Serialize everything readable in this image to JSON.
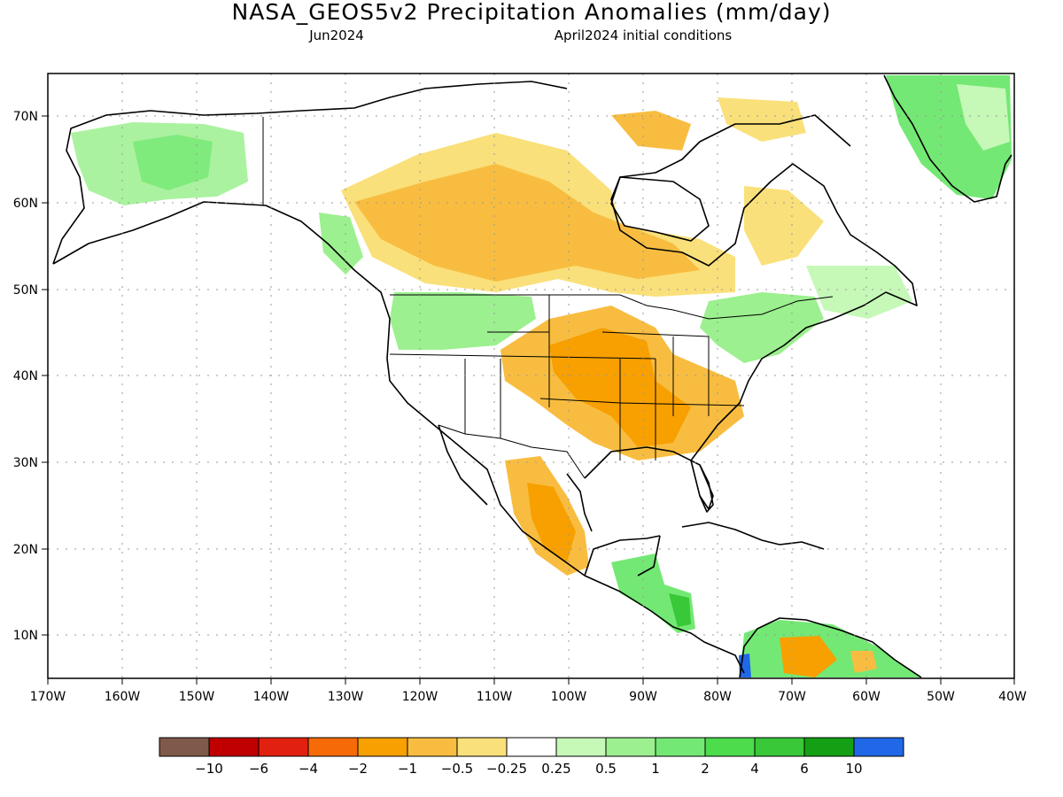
{
  "title": "NASA_GEOS5v2 Precipitation Anomalies (mm/day)",
  "subtitle_left": "Jun2024",
  "subtitle_right": "April2024 initial conditions",
  "map": {
    "projection": "cylindrical (lon-lat)",
    "lon_range": [
      -170,
      -40
    ],
    "lat_range": [
      5,
      75
    ],
    "grid": "dotted",
    "lon_ticks": [
      {
        "value": -170,
        "label": "170W"
      },
      {
        "value": -160,
        "label": "160W"
      },
      {
        "value": -150,
        "label": "150W"
      },
      {
        "value": -140,
        "label": "140W"
      },
      {
        "value": -130,
        "label": "130W"
      },
      {
        "value": -120,
        "label": "120W"
      },
      {
        "value": -110,
        "label": "110W"
      },
      {
        "value": -100,
        "label": "100W"
      },
      {
        "value": -90,
        "label": "90W"
      },
      {
        "value": -80,
        "label": "80W"
      },
      {
        "value": -70,
        "label": "70W"
      },
      {
        "value": -60,
        "label": "60W"
      },
      {
        "value": -50,
        "label": "50W"
      },
      {
        "value": -40,
        "label": "40W"
      }
    ],
    "lat_ticks": [
      {
        "value": 10,
        "label": "10N"
      },
      {
        "value": 20,
        "label": "20N"
      },
      {
        "value": 30,
        "label": "30N"
      },
      {
        "value": 40,
        "label": "40N"
      },
      {
        "value": 50,
        "label": "50N"
      },
      {
        "value": 60,
        "label": "60N"
      },
      {
        "value": 70,
        "label": "70N"
      }
    ]
  },
  "colorbar": {
    "colors": [
      "#7f5a4a",
      "#c00000",
      "#e22010",
      "#f76a08",
      "#f7a000",
      "#f8bd40",
      "#fae07a",
      "#ffffff",
      "#c6f8b8",
      "#9cf08f",
      "#74e874",
      "#4cdc4c",
      "#38c838",
      "#14a014",
      "#2068e8"
    ],
    "labels": [
      "-10",
      "-6",
      "-4",
      "-2",
      "-1",
      "-0.5",
      "-0.25",
      "0.25",
      "0.5",
      "1",
      "2",
      "4",
      "6",
      "10"
    ]
  }
}
